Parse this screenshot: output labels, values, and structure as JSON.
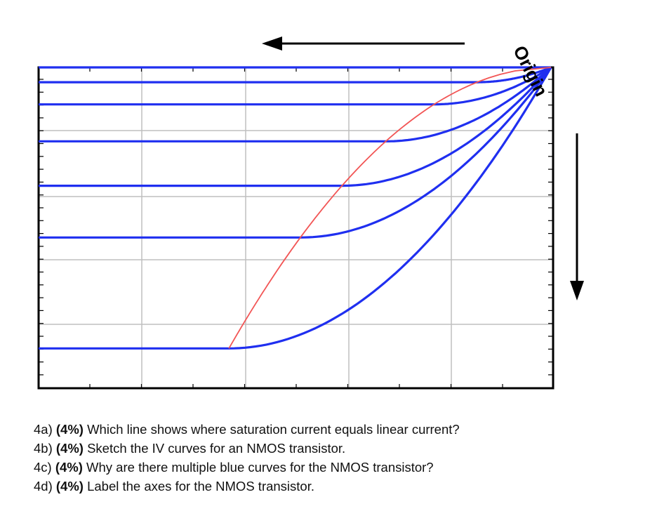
{
  "figure": {
    "origin_label": "Origin",
    "arrow_left": "left",
    "arrow_down": "down",
    "colors": {
      "curve": "#1f2ff0",
      "boundary": "#f25555",
      "grid": "#bfbfbf",
      "frame": "#000000"
    },
    "chart_data": {
      "type": "line",
      "title": "",
      "xlabel": "",
      "ylabel": "",
      "xlim": [
        0,
        5
      ],
      "ylim": [
        0,
        4.3
      ],
      "grid": true,
      "series_count": 7,
      "saturation_levels": [
        0.0,
        0.2,
        0.5,
        1.0,
        1.6,
        2.3,
        3.8
      ],
      "boundary_curve": "saturation/linear boundary (red)"
    }
  },
  "questions": [
    {
      "prefix": "4a) ",
      "weight": "(4%)",
      "text": " Which line shows where saturation current equals linear current?"
    },
    {
      "prefix": "4b) ",
      "weight": "(4%)",
      "text": " Sketch the IV curves for an NMOS transistor."
    },
    {
      "prefix": "4c) ",
      "weight": "(4%)",
      "text": " Why are there multiple blue curves for the NMOS transistor?"
    },
    {
      "prefix": "4d) ",
      "weight": "(4%)",
      "text": " Label the axes for the NMOS transistor."
    }
  ]
}
